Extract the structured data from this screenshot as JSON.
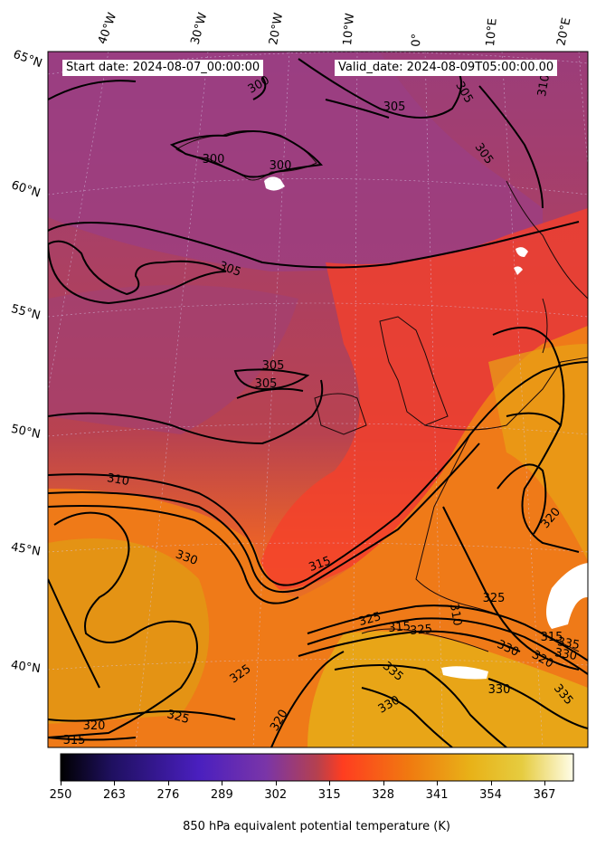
{
  "header": {
    "start_date": "Start date: 2024-08-07_00:00:00",
    "valid_date": "Valid_date: 2024-08-09T05:00:00.00"
  },
  "longitude_labels": [
    "40°W",
    "30°W",
    "20°W",
    "10°W",
    "0°",
    "10°E",
    "20°E"
  ],
  "latitude_labels": [
    "65°N",
    "60°N",
    "55°N",
    "50°N",
    "45°N",
    "40°N"
  ],
  "contour_labels": [
    "300",
    "305",
    "300",
    "300",
    "305",
    "305",
    "305",
    "305",
    "310",
    "310",
    "305",
    "330",
    "315",
    "325",
    "325",
    "325",
    "320",
    "315",
    "320",
    "310",
    "325",
    "315",
    "325",
    "330",
    "320",
    "330",
    "335",
    "330",
    "335",
    "335",
    "330",
    "320",
    "315"
  ],
  "colorbar": {
    "tick_labels": [
      "250",
      "263",
      "276",
      "289",
      "302",
      "315",
      "328",
      "341",
      "354",
      "367"
    ],
    "min": 250,
    "max": 374,
    "label": "850 hPa equivalent potential temperature (K)",
    "colormap": [
      "#000000",
      "#1f1060",
      "#4a1fbf",
      "#7a35a8",
      "#b5404f",
      "#ff3d20",
      "#f07a10",
      "#e8a818",
      "#e6c430",
      "#fffde8"
    ]
  }
}
